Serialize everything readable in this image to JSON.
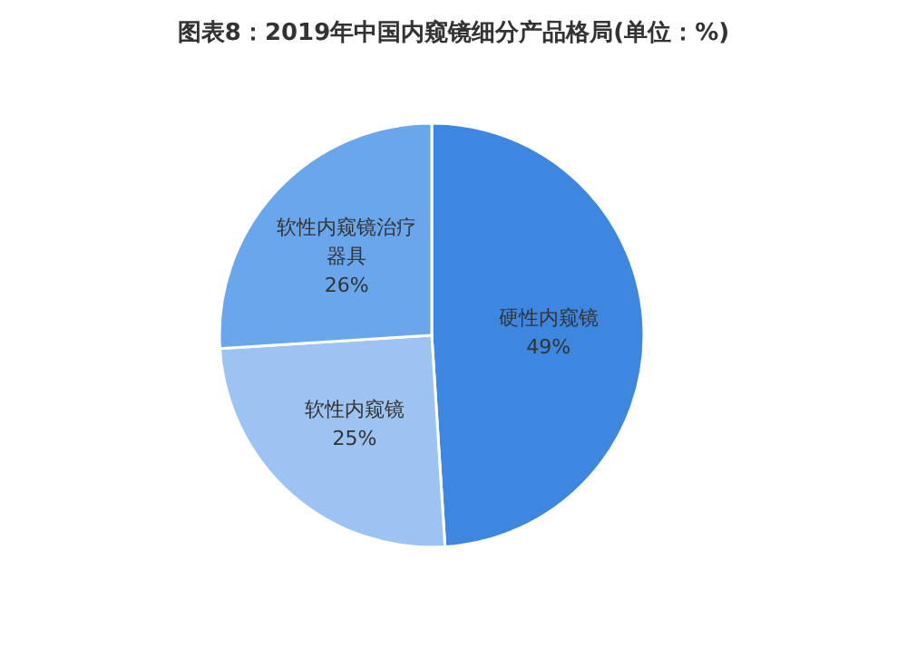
{
  "chart_data": {
    "type": "pie",
    "title": "图表8：2019年中国内窥镜细分产品格局(单位：%)",
    "categories": [
      "硬性内窥镜",
      "软性内窥镜",
      "软性内窥镜治疗器具"
    ],
    "values": [
      49,
      25,
      26
    ],
    "colors": [
      "#3d87e0",
      "#9dc3f3",
      "#6aa6ec"
    ],
    "value_labels": [
      "49%",
      "25%",
      "26%"
    ]
  }
}
